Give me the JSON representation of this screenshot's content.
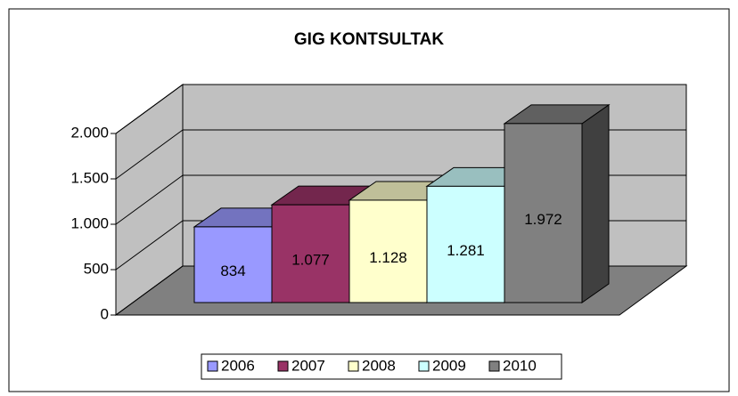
{
  "chart_data": {
    "type": "bar",
    "title": "GIG KONTSULTAK",
    "series": [
      {
        "name": "2006",
        "color": "#9999ff",
        "values": [
          834
        ],
        "value_labels": [
          "834"
        ]
      },
      {
        "name": "2007",
        "color": "#993366",
        "values": [
          1077
        ],
        "value_labels": [
          "1.077"
        ]
      },
      {
        "name": "2008",
        "color": "#ffffcc",
        "values": [
          1128
        ],
        "value_labels": [
          "1.128"
        ]
      },
      {
        "name": "2009",
        "color": "#ccffff",
        "values": [
          1281
        ],
        "value_labels": [
          "1.281"
        ]
      },
      {
        "name": "2010",
        "color": "#808080",
        "values": [
          1972
        ],
        "value_labels": [
          "1.972"
        ]
      }
    ],
    "ylim": [
      0,
      2000
    ],
    "yticks": [
      0,
      500,
      {
        "value": 1000,
        "label": "1.000"
      },
      {
        "value": 1500,
        "label": "1.500"
      },
      {
        "value": 2000,
        "label": "2.000"
      }
    ],
    "grid": true,
    "legend": "bottom"
  }
}
